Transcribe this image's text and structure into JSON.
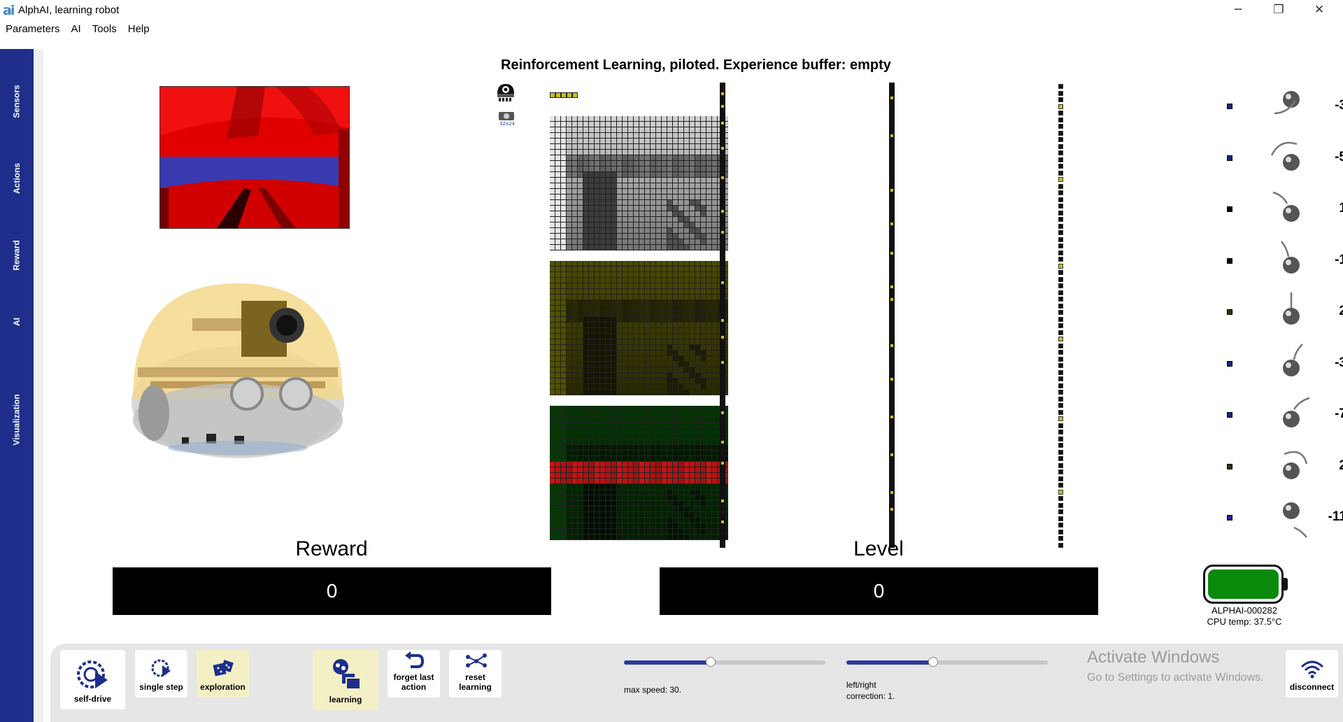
{
  "window": {
    "title": "AlphAI, learning robot",
    "logo": "ai",
    "minimize_icon": "─",
    "maximize_icon": "❐",
    "close_icon": "✕"
  },
  "menu": [
    "Parameters",
    "AI",
    "Tools",
    "Help"
  ],
  "side_tabs": [
    "Sensors",
    "Actions",
    "Reward",
    "AI",
    "Visualization"
  ],
  "main": {
    "title": "Reinforcement Learning, piloted. Experience buffer: empty",
    "sensor_icon_label": "32x24"
  },
  "actions": [
    {
      "icon": "reverse-left-icon",
      "value": "-3",
      "dot_color": "#1a237e"
    },
    {
      "icon": "spin-left-icon",
      "value": "-5",
      "dot_color": "#1a237e"
    },
    {
      "icon": "turn-left-sharp-icon",
      "value": "1",
      "dot_color": "#000000"
    },
    {
      "icon": "turn-left-icon",
      "value": "-1",
      "dot_color": "#000000"
    },
    {
      "icon": "forward-icon",
      "value": "2",
      "dot_color": "#333300"
    },
    {
      "icon": "turn-right-icon",
      "value": "-3",
      "dot_color": "#1a237e"
    },
    {
      "icon": "turn-right-sharp-icon",
      "value": "-7",
      "dot_color": "#1a237e"
    },
    {
      "icon": "spin-right-icon",
      "value": "2",
      "dot_color": "#333300"
    },
    {
      "icon": "reverse-right-icon",
      "value": "-11",
      "dot_color": "#2222aa"
    }
  ],
  "reward": {
    "label": "Reward",
    "value": "0"
  },
  "level": {
    "label": "Level",
    "value": "0"
  },
  "robot_status": {
    "battery_level": 1.0,
    "battery_color": "#0a8a0a",
    "id": "ALPHAI-000282",
    "cpu_temp": "CPU temp: 37.5°C"
  },
  "toolbar": {
    "self_drive": "self-drive",
    "single_step": "single step",
    "exploration": "exploration",
    "learning": "learning",
    "forget_last_action": "forget last action",
    "reset_learning": "reset learning",
    "disconnect": "disconnect",
    "speed_label": "max speed: 30.",
    "speed_fraction": 0.43,
    "correction_label": "left/right correction: 1.",
    "correction_fraction": 0.43
  },
  "watermark": {
    "line1": "Activate Windows",
    "line2": "Go to Settings to activate Windows."
  }
}
